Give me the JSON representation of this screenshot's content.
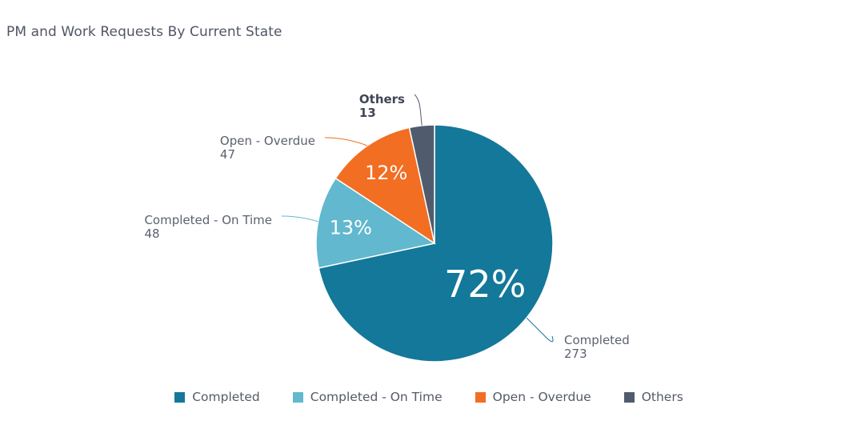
{
  "title": "PM and Work Requests By Current State",
  "chart_data": {
    "type": "pie",
    "categories": [
      "Completed",
      "Completed - On Time",
      "Open - Overdue",
      "Others"
    ],
    "values": [
      273,
      48,
      47,
      13
    ],
    "percent_labels": [
      "72%",
      "13%",
      "12%",
      ""
    ],
    "colors": [
      "#137899",
      "#62b8ce",
      "#f26e22",
      "#505b6e"
    ],
    "legend_position": "bottom"
  },
  "legend": [
    {
      "label": "Completed",
      "color": "#137899"
    },
    {
      "label": "Completed - On Time",
      "color": "#62b8ce"
    },
    {
      "label": "Open - Overdue",
      "color": "#f26e22"
    },
    {
      "label": "Others",
      "color": "#505b6e"
    }
  ]
}
